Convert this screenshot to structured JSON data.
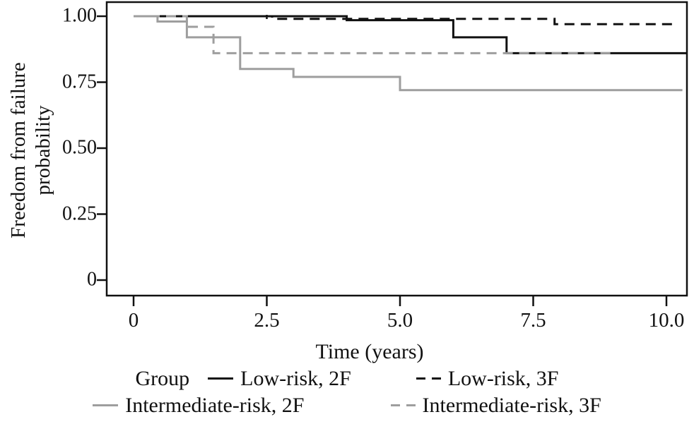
{
  "figure": {
    "background": "#ffffff"
  },
  "colors": {
    "line_black": "#111111",
    "line_gray": "#9e9e9e",
    "axis": "#111111"
  },
  "y_axis": {
    "label_line1": "Freedom from failure",
    "label_line2": "probability",
    "ticks": [
      "1.00",
      "0.75",
      "0.50",
      "0.25",
      "0"
    ],
    "tick_values": [
      1.0,
      0.75,
      0.5,
      0.25,
      0
    ]
  },
  "x_axis": {
    "label": "Time (years)",
    "ticks": [
      "0",
      "2.5",
      "5.0",
      "7.5",
      "10.0"
    ],
    "tick_values": [
      0,
      2.5,
      5.0,
      7.5,
      10.0
    ]
  },
  "legend": {
    "title": "Group",
    "items": [
      {
        "label": "Low-risk, 2F",
        "color": "#111111",
        "style": "solid"
      },
      {
        "label": "Low-risk, 3F",
        "color": "#111111",
        "style": "dashed"
      },
      {
        "label": "Intermediate-risk, 2F",
        "color": "#9e9e9e",
        "style": "solid"
      },
      {
        "label": "Intermediate-risk, 3F",
        "color": "#9e9e9e",
        "style": "dashed"
      }
    ]
  },
  "chart_data": {
    "type": "line",
    "subtype": "kaplan-meier-step",
    "title": "",
    "xlabel": "Time (years)",
    "ylabel": "Freedom from failure probability",
    "xlim": [
      -0.5,
      10.4
    ],
    "ylim": [
      0,
      1.0
    ],
    "grid": false,
    "legend_position": "bottom",
    "series": [
      {
        "name": "Low-risk, 2F",
        "style": "solid",
        "color": "#111111",
        "steps": [
          [
            0,
            1.0
          ],
          [
            4.0,
            0.985
          ],
          [
            6.0,
            0.92
          ],
          [
            7.0,
            0.86
          ]
        ],
        "end_time": 10.38,
        "censor_marks": [
          [
            2.5,
            1.0
          ]
        ]
      },
      {
        "name": "Low-risk, 3F",
        "style": "dashed",
        "color": "#111111",
        "steps": [
          [
            0,
            1.0
          ],
          [
            2.6,
            0.99
          ],
          [
            7.9,
            0.97
          ]
        ],
        "end_time": 10.2,
        "censor_marks": []
      },
      {
        "name": "Intermediate-risk, 2F",
        "style": "solid",
        "color": "#9e9e9e",
        "steps": [
          [
            0,
            1.0
          ],
          [
            0.45,
            0.98
          ],
          [
            1.0,
            0.92
          ],
          [
            2.0,
            0.8
          ],
          [
            3.0,
            0.77
          ],
          [
            5.0,
            0.72
          ]
        ],
        "end_time": 10.3,
        "censor_marks": []
      },
      {
        "name": "Intermediate-risk, 3F",
        "style": "dashed",
        "color": "#9e9e9e",
        "steps": [
          [
            0,
            1.0
          ],
          [
            1.0,
            0.96
          ],
          [
            1.5,
            0.86
          ]
        ],
        "end_time": 9.0,
        "censor_marks": []
      }
    ]
  }
}
